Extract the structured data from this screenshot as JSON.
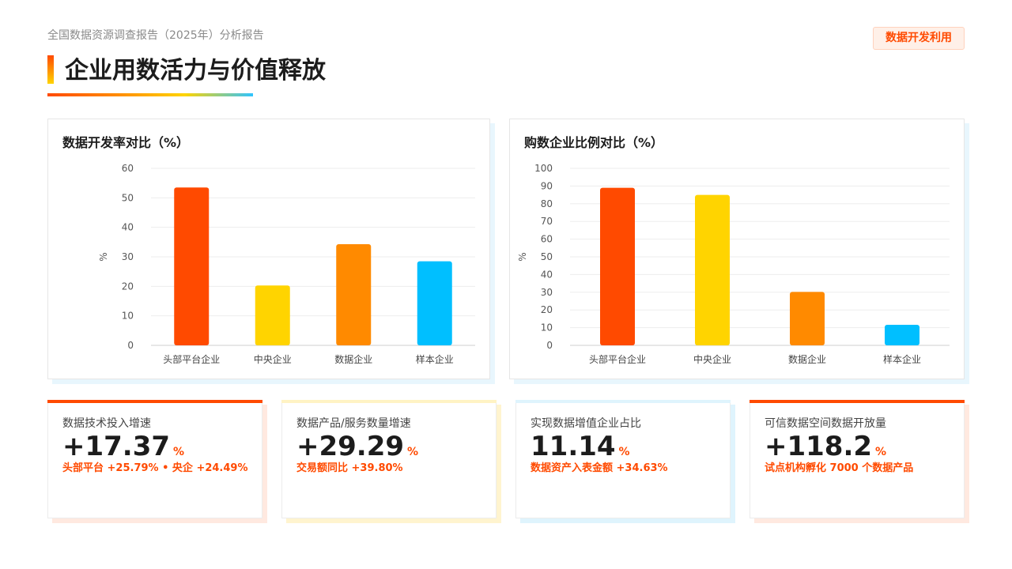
{
  "header": {
    "subtitle": "全国数据资源调查报告（2025年）分析报告",
    "title": "企业用数活力与价值释放",
    "tag": "数据开发利用"
  },
  "colors": {
    "accent": "#ff4a00",
    "series": [
      "#ff4a00",
      "#ffd400",
      "#ff8a00",
      "#00bfff"
    ]
  },
  "chart_data": [
    {
      "type": "bar",
      "title": "数据开发率对比（%）",
      "ylabel": "%",
      "categories": [
        "头部平台企业",
        "中央企业",
        "数据企业",
        "样本企业"
      ],
      "values": [
        53.5,
        20.3,
        34.3,
        28.5
      ],
      "ylim": [
        0,
        60
      ],
      "yticks": [
        "0",
        "10",
        "20",
        "30",
        "40",
        "50",
        "60"
      ],
      "grid": true
    },
    {
      "type": "bar",
      "title": "购数企业比例对比（%）",
      "ylabel": "%",
      "categories": [
        "头部平台企业",
        "中央企业",
        "数据企业",
        "样本企业"
      ],
      "values": [
        89,
        85,
        30.2,
        11.6
      ],
      "ylim": [
        0,
        100
      ],
      "yticks": [
        "0",
        "10",
        "20",
        "30",
        "40",
        "50",
        "60",
        "70",
        "80",
        "90",
        "100"
      ],
      "grid": true
    }
  ],
  "cards": [
    {
      "title": "数据技术投入增速",
      "value": "+17.37",
      "unit": "%",
      "note": "头部平台 +25.79% • 央企 +24.49%",
      "line_color": "#ff4a00",
      "shadow_color": "#ffe9e0"
    },
    {
      "title": "数据产品/服务数量增速",
      "value": "+29.29",
      "unit": "%",
      "note": "交易额同比 +39.80%",
      "line_color": "#fff3c4",
      "shadow_color": "#fff4cf"
    },
    {
      "title": "实现数据增值企业占比",
      "value": "11.14",
      "unit": "%",
      "note": "数据资产入表金额 +34.63%",
      "line_color": "#dff4fd",
      "shadow_color": "#dff4fd"
    },
    {
      "title": "可信数据空间数据开放量",
      "value": "+118.2",
      "unit": "%",
      "note": "试点机构孵化 7000 个数据产品",
      "line_color": "#ff4a00",
      "shadow_color": "#ffe9e0"
    }
  ]
}
